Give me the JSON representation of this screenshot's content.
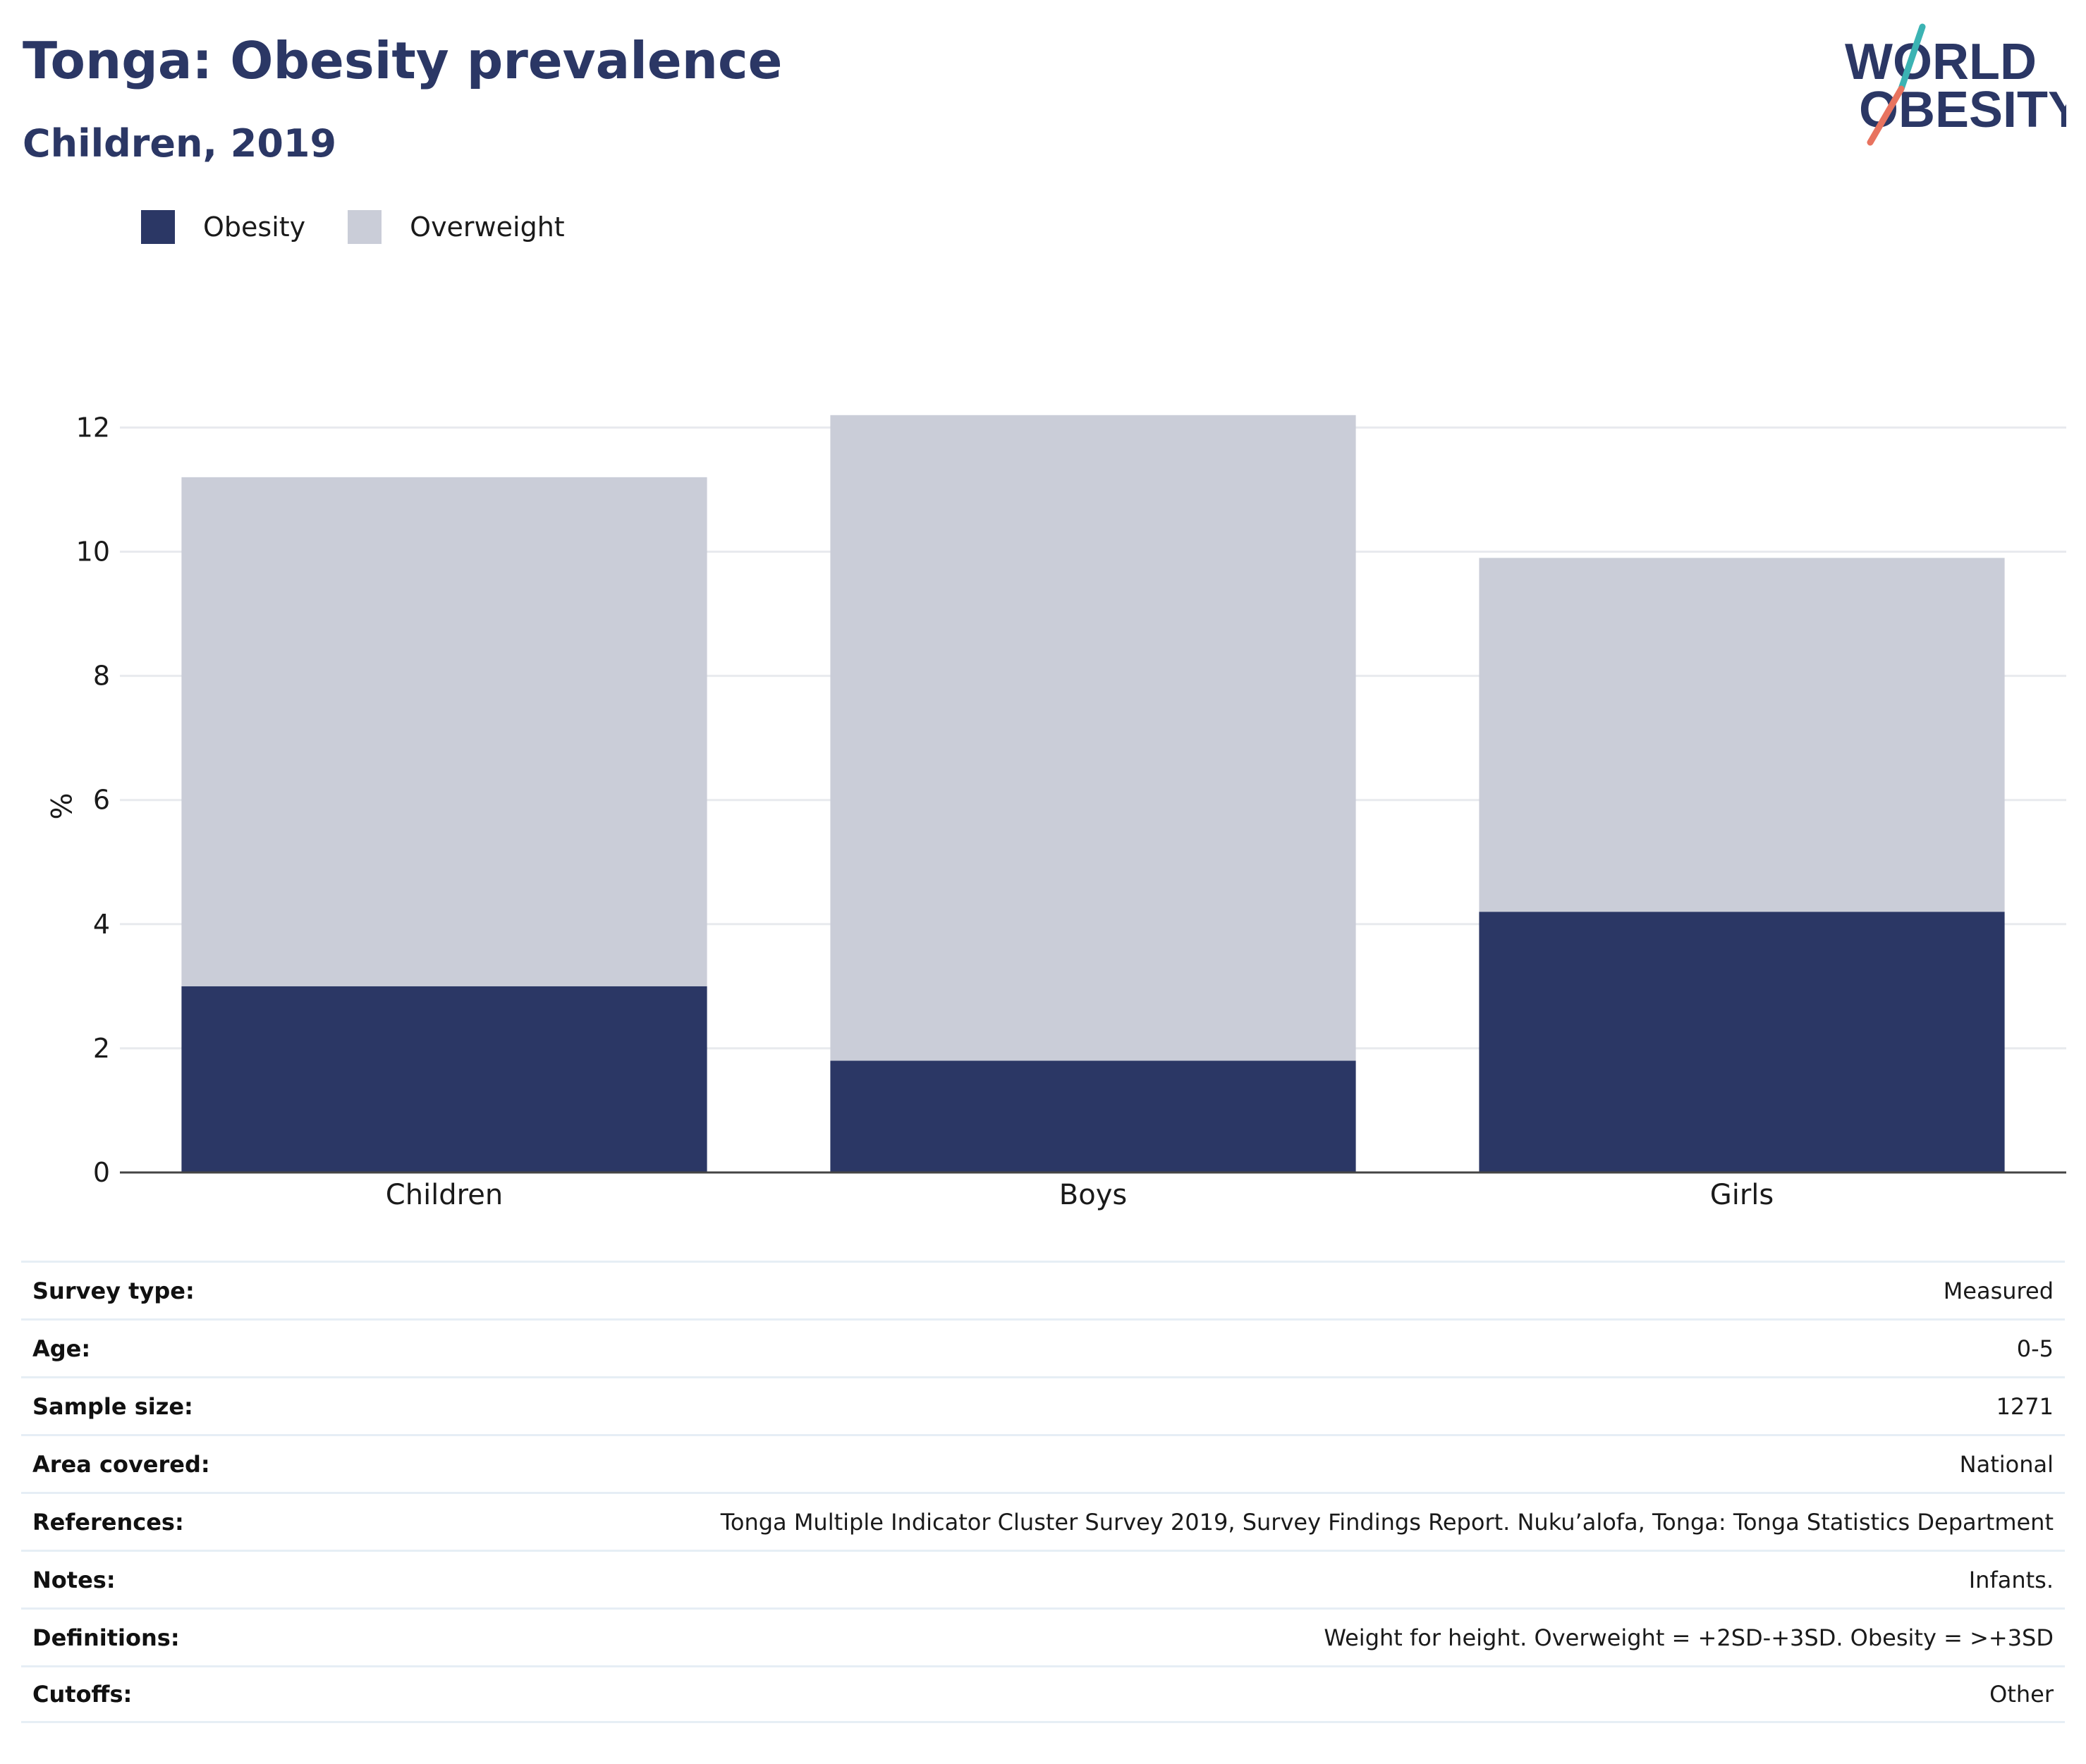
{
  "header": {
    "title": "Tonga: Obesity prevalence",
    "subtitle": "Children, 2019"
  },
  "logo": {
    "line1": "WORLD",
    "line2": "OBESITY"
  },
  "legend": [
    {
      "label": "Obesity",
      "color": "#2b3765"
    },
    {
      "label": "Overweight",
      "color": "#cacdd8"
    }
  ],
  "chart_data": {
    "type": "bar",
    "stacked": true,
    "categories": [
      "Children",
      "Boys",
      "Girls"
    ],
    "series": [
      {
        "name": "Obesity",
        "values": [
          3.0,
          1.8,
          4.2
        ],
        "color": "#2b3765"
      },
      {
        "name": "Overweight",
        "values": [
          8.2,
          10.4,
          5.7
        ],
        "color": "#cacdd8"
      }
    ],
    "ylabel": "%",
    "ylim": [
      0,
      12.3
    ],
    "yticks": [
      0,
      2,
      4,
      6,
      8,
      10,
      12
    ],
    "grid": true,
    "legend_position": "top-left"
  },
  "meta": [
    {
      "label": "Survey type:",
      "value": "Measured"
    },
    {
      "label": "Age:",
      "value": "0-5"
    },
    {
      "label": "Sample size:",
      "value": "1271"
    },
    {
      "label": "Area covered:",
      "value": "National"
    },
    {
      "label": "References:",
      "value": "Tonga Multiple Indicator Cluster Survey 2019, Survey Findings Report. Nuku’alofa, Tonga: Tonga Statistics Department"
    },
    {
      "label": "Notes:",
      "value": "Infants."
    },
    {
      "label": "Definitions:",
      "value": "Weight for height. Overweight = +2SD-+3SD. Obesity = >+3SD"
    },
    {
      "label": "Cutoffs:",
      "value": "Other"
    }
  ]
}
